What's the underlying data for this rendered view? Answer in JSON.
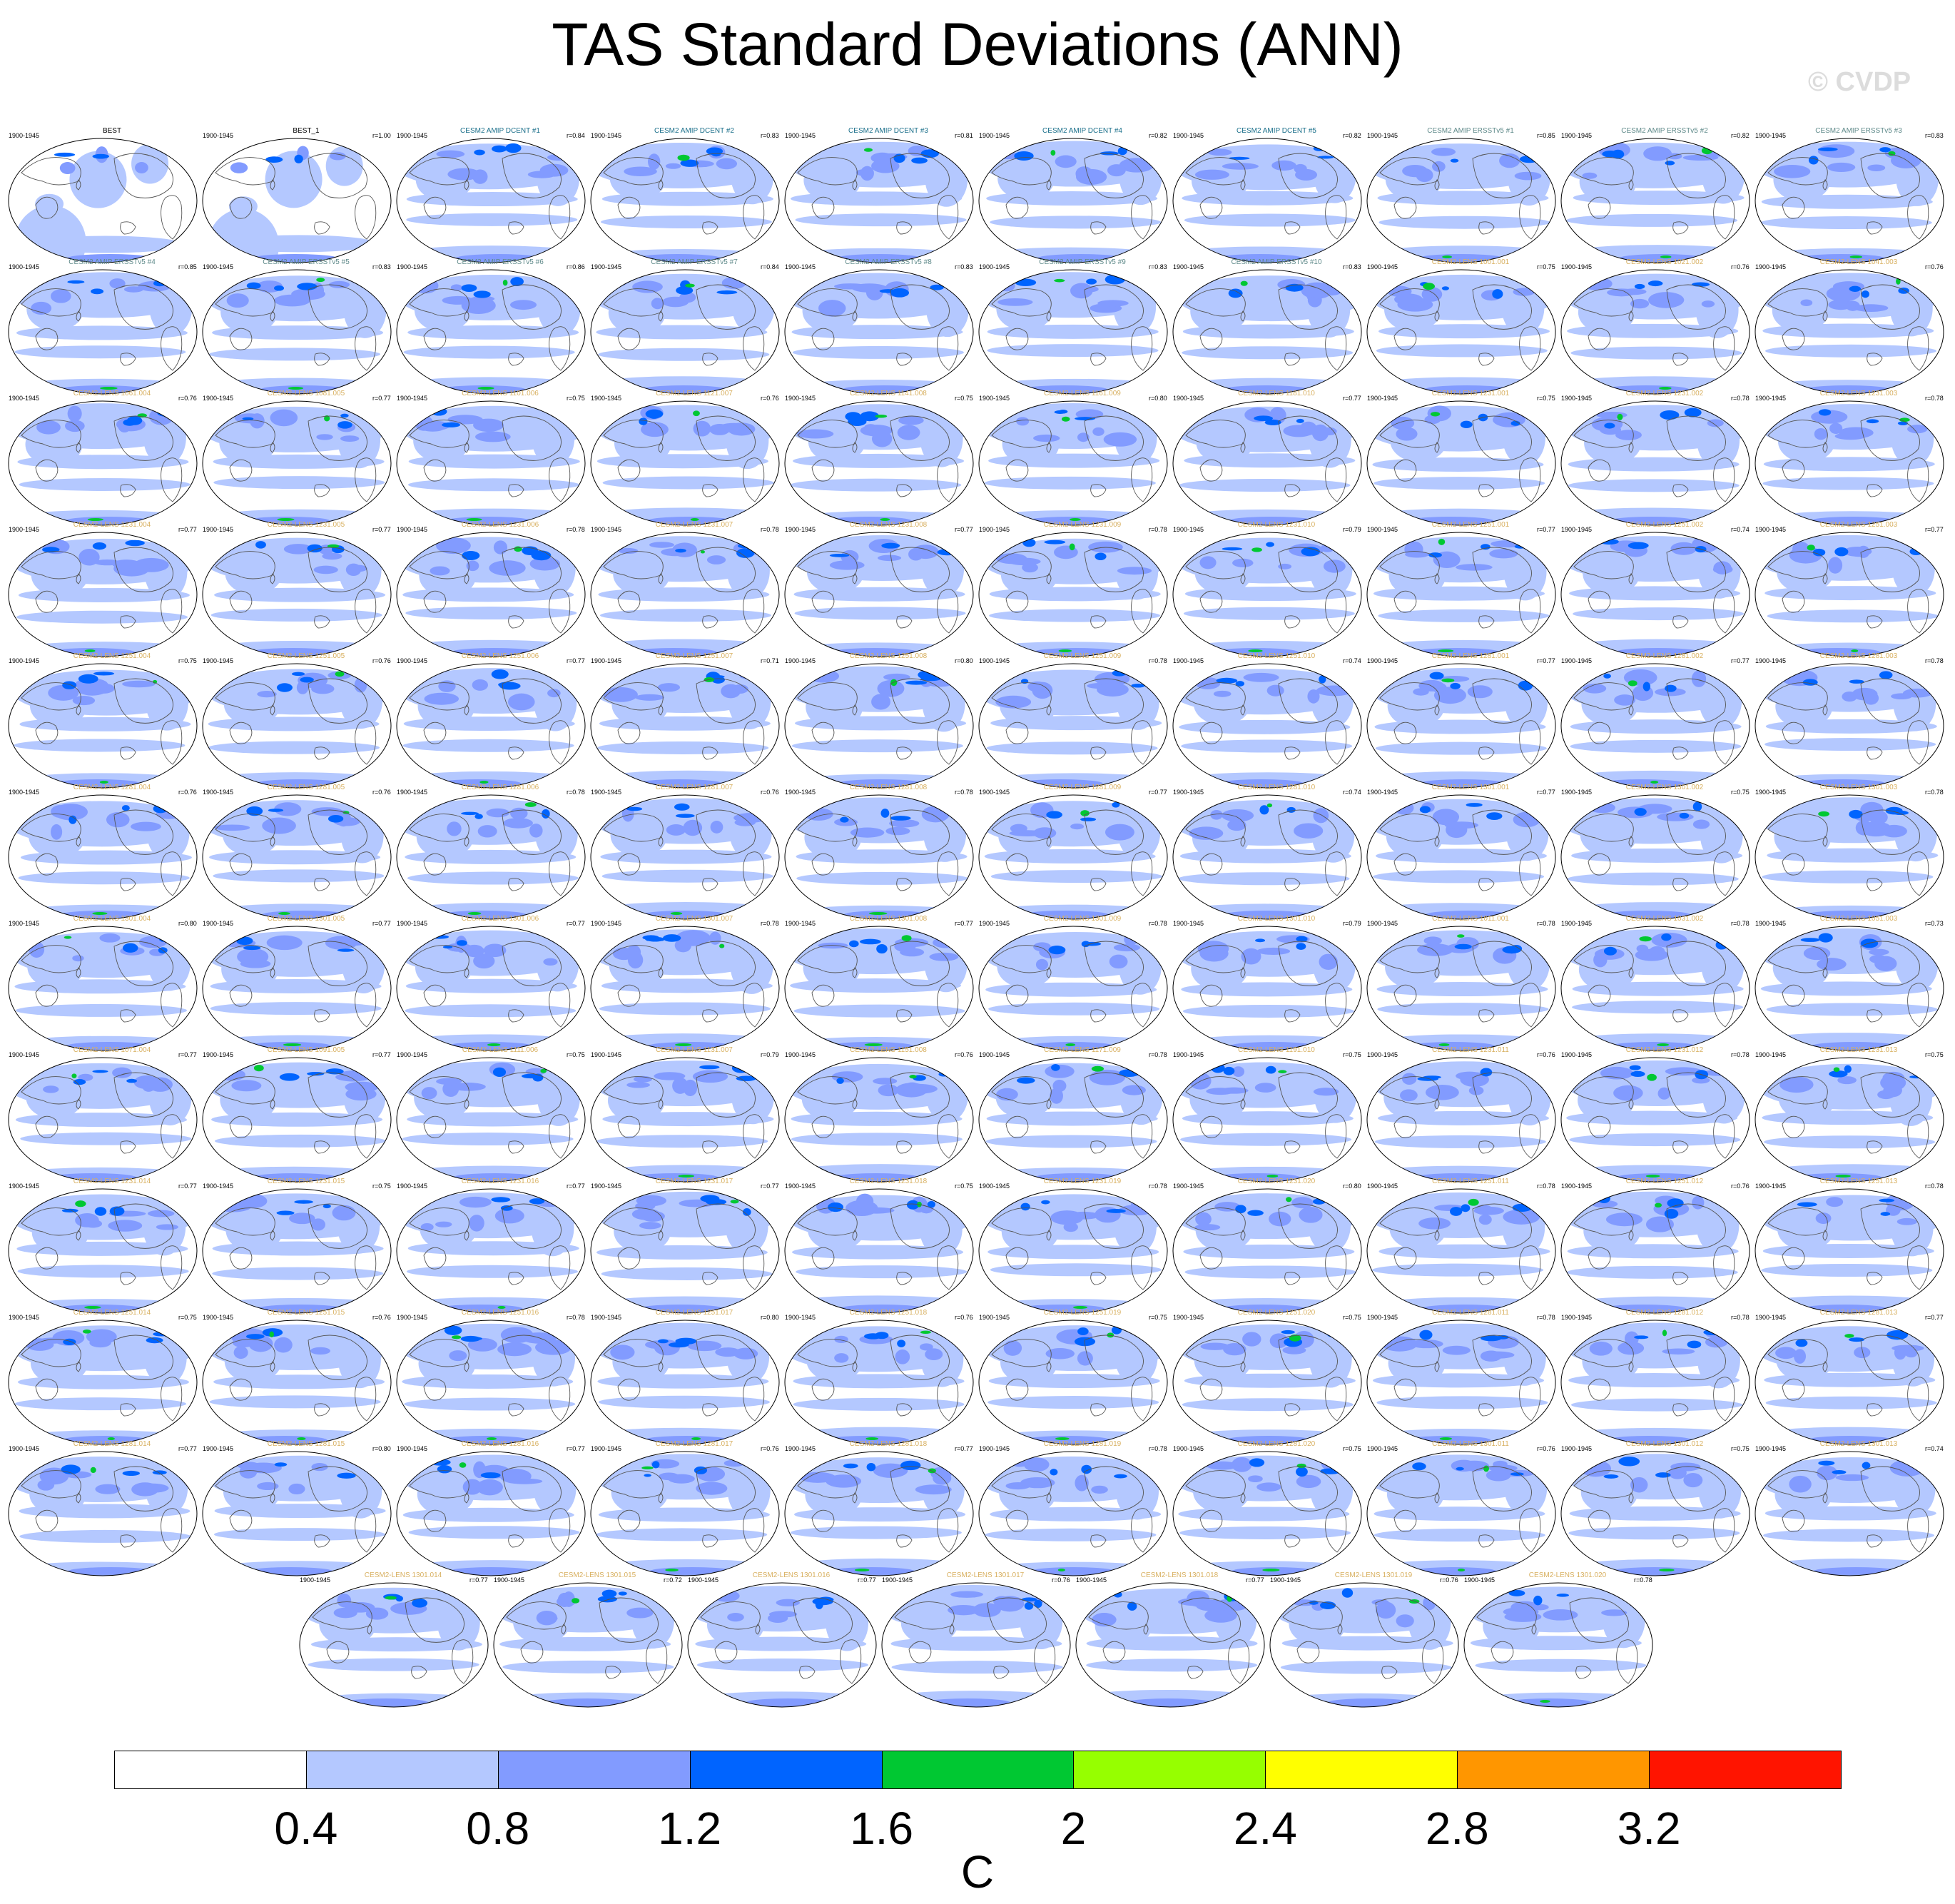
{
  "title": "TAS Standard Deviations (ANN)",
  "watermark": "© CVDP",
  "chart_data": {
    "type": "heatmap",
    "title": "TAS Standard Deviations (ANN)",
    "period": "1900-1945",
    "units": "C",
    "colorbar": {
      "ticks": [
        "0.4",
        "0.8",
        "1.2",
        "1.6",
        "2",
        "2.4",
        "2.8",
        "3.2"
      ],
      "colors": [
        "#ffffff",
        "#b4c8ff",
        "#829bff",
        "#0064ff",
        "#00c832",
        "#96ff00",
        "#ffff00",
        "#ff9600",
        "#ff1400"
      ]
    },
    "panels": [
      {
        "title": "BEST",
        "r": ""
      },
      {
        "title": "BEST_1",
        "r": "r=1.00"
      },
      {
        "title": "CESM2 AMIP DCENT #1",
        "r": "r=0.84"
      },
      {
        "title": "CESM2 AMIP DCENT #2",
        "r": "r=0.83"
      },
      {
        "title": "CESM2 AMIP DCENT #3",
        "r": "r=0.81"
      },
      {
        "title": "CESM2 AMIP DCENT #4",
        "r": "r=0.82"
      },
      {
        "title": "CESM2 AMIP DCENT #5",
        "r": "r=0.82"
      },
      {
        "title": "CESM2 AMIP ERSSTv5 #1",
        "r": "r=0.85"
      },
      {
        "title": "CESM2 AMIP ERSSTv5 #2",
        "r": "r=0.82"
      },
      {
        "title": "CESM2 AMIP ERSSTv5 #3",
        "r": "r=0.83"
      },
      {
        "title": "CESM2 AMIP ERSSTv5 #4",
        "r": "r=0.85"
      },
      {
        "title": "CESM2 AMIP ERSSTv5 #5",
        "r": "r=0.83"
      },
      {
        "title": "CESM2 AMIP ERSSTv5 #6",
        "r": "r=0.86"
      },
      {
        "title": "CESM2 AMIP ERSSTv5 #7",
        "r": "r=0.84"
      },
      {
        "title": "CESM2 AMIP ERSSTv5 #8",
        "r": "r=0.83"
      },
      {
        "title": "CESM2 AMIP ERSSTv5 #9",
        "r": "r=0.83"
      },
      {
        "title": "CESM2 AMIP ERSSTv5 #10",
        "r": "r=0.83"
      },
      {
        "title": "CESM2-LENS 1001.001",
        "r": "r=0.75"
      },
      {
        "title": "CESM2-LENS 1021.002",
        "r": "r=0.76"
      },
      {
        "title": "CESM2-LENS 1041.003",
        "r": "r=0.76"
      },
      {
        "title": "CESM2-LENS 1061.004",
        "r": "r=0.76"
      },
      {
        "title": "CESM2-LENS 1081.005",
        "r": "r=0.77"
      },
      {
        "title": "CESM2-LENS 1101.006",
        "r": "r=0.75"
      },
      {
        "title": "CESM2-LENS 1121.007",
        "r": "r=0.76"
      },
      {
        "title": "CESM2-LENS 1141.008",
        "r": "r=0.75"
      },
      {
        "title": "CESM2-LENS 1161.009",
        "r": "r=0.80"
      },
      {
        "title": "CESM2-LENS 1181.010",
        "r": "r=0.77"
      },
      {
        "title": "CESM2-LENS 1231.001",
        "r": "r=0.75"
      },
      {
        "title": "CESM2-LENS 1231.002",
        "r": "r=0.78"
      },
      {
        "title": "CESM2-LENS 1231.003",
        "r": "r=0.78"
      },
      {
        "title": "CESM2-LENS 1231.004",
        "r": "r=0.77"
      },
      {
        "title": "CESM2-LENS 1231.005",
        "r": "r=0.77"
      },
      {
        "title": "CESM2-LENS 1231.006",
        "r": "r=0.78"
      },
      {
        "title": "CESM2-LENS 1231.007",
        "r": "r=0.78"
      },
      {
        "title": "CESM2-LENS 1231.008",
        "r": "r=0.77"
      },
      {
        "title": "CESM2-LENS 1231.009",
        "r": "r=0.78"
      },
      {
        "title": "CESM2-LENS 1231.010",
        "r": "r=0.79"
      },
      {
        "title": "CESM2-LENS 1251.001",
        "r": "r=0.77"
      },
      {
        "title": "CESM2-LENS 1251.002",
        "r": "r=0.74"
      },
      {
        "title": "CESM2-LENS 1251.003",
        "r": "r=0.77"
      },
      {
        "title": "CESM2-LENS 1251.004",
        "r": "r=0.75"
      },
      {
        "title": "CESM2-LENS 1251.005",
        "r": "r=0.76"
      },
      {
        "title": "CESM2-LENS 1251.006",
        "r": "r=0.77"
      },
      {
        "title": "CESM2-LENS 1251.007",
        "r": "r=0.71"
      },
      {
        "title": "CESM2-LENS 1251.008",
        "r": "r=0.80"
      },
      {
        "title": "CESM2-LENS 1251.009",
        "r": "r=0.78"
      },
      {
        "title": "CESM2-LENS 1251.010",
        "r": "r=0.74"
      },
      {
        "title": "CESM2-LENS 1281.001",
        "r": "r=0.77"
      },
      {
        "title": "CESM2-LENS 1281.002",
        "r": "r=0.77"
      },
      {
        "title": "CESM2-LENS 1281.003",
        "r": "r=0.78"
      },
      {
        "title": "CESM2-LENS 1281.004",
        "r": "r=0.76"
      },
      {
        "title": "CESM2-LENS 1281.005",
        "r": "r=0.76"
      },
      {
        "title": "CESM2-LENS 1281.006",
        "r": "r=0.78"
      },
      {
        "title": "CESM2-LENS 1281.007",
        "r": "r=0.76"
      },
      {
        "title": "CESM2-LENS 1281.008",
        "r": "r=0.78"
      },
      {
        "title": "CESM2-LENS 1281.009",
        "r": "r=0.77"
      },
      {
        "title": "CESM2-LENS 1281.010",
        "r": "r=0.74"
      },
      {
        "title": "CESM2-LENS 1301.001",
        "r": "r=0.77"
      },
      {
        "title": "CESM2-LENS 1301.002",
        "r": "r=0.75"
      },
      {
        "title": "CESM2-LENS 1301.003",
        "r": "r=0.78"
      },
      {
        "title": "CESM2-LENS 1301.004",
        "r": "r=0.80"
      },
      {
        "title": "CESM2-LENS 1301.005",
        "r": "r=0.77"
      },
      {
        "title": "CESM2-LENS 1301.006",
        "r": "r=0.77"
      },
      {
        "title": "CESM2-LENS 1301.007",
        "r": "r=0.78"
      },
      {
        "title": "CESM2-LENS 1301.008",
        "r": "r=0.77"
      },
      {
        "title": "CESM2-LENS 1301.009",
        "r": "r=0.78"
      },
      {
        "title": "CESM2-LENS 1301.010",
        "r": "r=0.79"
      },
      {
        "title": "CESM2-LENS 1011.001",
        "r": "r=0.78"
      },
      {
        "title": "CESM2-LENS 1031.002",
        "r": "r=0.78"
      },
      {
        "title": "CESM2-LENS 1051.003",
        "r": "r=0.73"
      },
      {
        "title": "CESM2-LENS 1071.004",
        "r": "r=0.77"
      },
      {
        "title": "CESM2-LENS 1091.005",
        "r": "r=0.77"
      },
      {
        "title": "CESM2-LENS 1111.006",
        "r": "r=0.75"
      },
      {
        "title": "CESM2-LENS 1131.007",
        "r": "r=0.79"
      },
      {
        "title": "CESM2-LENS 1151.008",
        "r": "r=0.76"
      },
      {
        "title": "CESM2-LENS 1171.009",
        "r": "r=0.78"
      },
      {
        "title": "CESM2-LENS 1191.010",
        "r": "r=0.75"
      },
      {
        "title": "CESM2-LENS 1231.011",
        "r": "r=0.76"
      },
      {
        "title": "CESM2-LENS 1231.012",
        "r": "r=0.78"
      },
      {
        "title": "CESM2-LENS 1231.013",
        "r": "r=0.75"
      },
      {
        "title": "CESM2-LENS 1231.014",
        "r": "r=0.77"
      },
      {
        "title": "CESM2-LENS 1231.015",
        "r": "r=0.75"
      },
      {
        "title": "CESM2-LENS 1231.016",
        "r": "r=0.77"
      },
      {
        "title": "CESM2-LENS 1231.017",
        "r": "r=0.77"
      },
      {
        "title": "CESM2-LENS 1231.018",
        "r": "r=0.75"
      },
      {
        "title": "CESM2-LENS 1231.019",
        "r": "r=0.78"
      },
      {
        "title": "CESM2-LENS 1231.020",
        "r": "r=0.80"
      },
      {
        "title": "CESM2-LENS 1251.011",
        "r": "r=0.78"
      },
      {
        "title": "CESM2-LENS 1251.012",
        "r": "r=0.76"
      },
      {
        "title": "CESM2-LENS 1251.013",
        "r": "r=0.78"
      },
      {
        "title": "CESM2-LENS 1251.014",
        "r": "r=0.75"
      },
      {
        "title": "CESM2-LENS 1251.015",
        "r": "r=0.76"
      },
      {
        "title": "CESM2-LENS 1251.016",
        "r": "r=0.78"
      },
      {
        "title": "CESM2-LENS 1251.017",
        "r": "r=0.80"
      },
      {
        "title": "CESM2-LENS 1251.018",
        "r": "r=0.76"
      },
      {
        "title": "CESM2-LENS 1251.019",
        "r": "r=0.75"
      },
      {
        "title": "CESM2-LENS 1251.020",
        "r": "r=0.75"
      },
      {
        "title": "CESM2-LENS 1281.011",
        "r": "r=0.78"
      },
      {
        "title": "CESM2-LENS 1281.012",
        "r": "r=0.78"
      },
      {
        "title": "CESM2-LENS 1281.013",
        "r": "r=0.77"
      },
      {
        "title": "CESM2-LENS 1281.014",
        "r": "r=0.77"
      },
      {
        "title": "CESM2-LENS 1281.015",
        "r": "r=0.80"
      },
      {
        "title": "CESM2-LENS 1281.016",
        "r": "r=0.77"
      },
      {
        "title": "CESM2-LENS 1281.017",
        "r": "r=0.76"
      },
      {
        "title": "CESM2-LENS 1281.018",
        "r": "r=0.77"
      },
      {
        "title": "CESM2-LENS 1281.019",
        "r": "r=0.78"
      },
      {
        "title": "CESM2-LENS 1281.020",
        "r": "r=0.75"
      },
      {
        "title": "CESM2-LENS 1301.011",
        "r": "r=0.76"
      },
      {
        "title": "CESM2-LENS 1301.012",
        "r": "r=0.75"
      },
      {
        "title": "CESM2-LENS 1301.013",
        "r": "r=0.74"
      },
      {
        "title": "CESM2-LENS 1301.014",
        "r": "r=0.77"
      },
      {
        "title": "CESM2-LENS 1301.015",
        "r": "r=0.72"
      },
      {
        "title": "CESM2-LENS 1301.016",
        "r": "r=0.77"
      },
      {
        "title": "CESM2-LENS 1301.017",
        "r": "r=0.76"
      },
      {
        "title": "CESM2-LENS 1301.018",
        "r": "r=0.77"
      },
      {
        "title": "CESM2-LENS 1301.019",
        "r": "r=0.76"
      },
      {
        "title": "CESM2-LENS 1301.020",
        "r": "r=0.78"
      }
    ]
  }
}
